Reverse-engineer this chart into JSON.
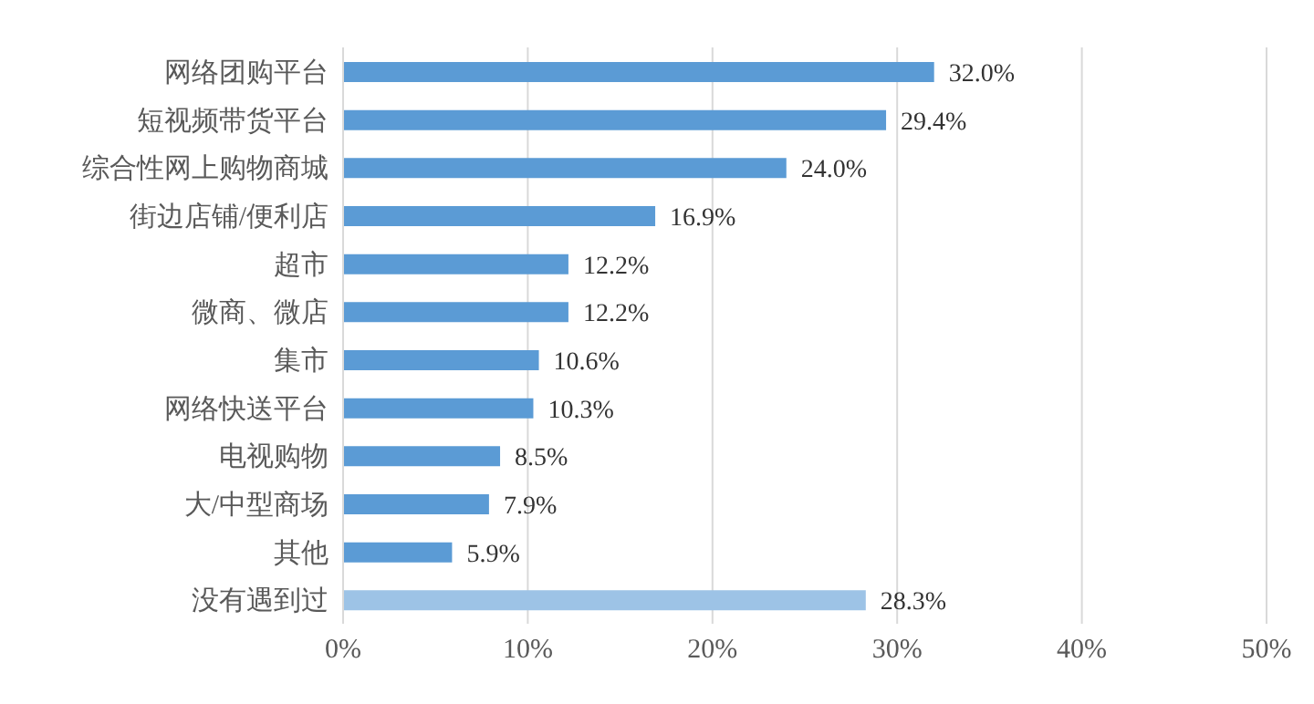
{
  "chart_data": {
    "type": "bar",
    "orientation": "horizontal",
    "categories": [
      "网络团购平台",
      "短视频带货平台",
      "综合性网上购物商城",
      "街边店铺/便利店",
      "超市",
      "微商、微店",
      "集市",
      "网络快送平台",
      "电视购物",
      "大/中型商场",
      "其他",
      "没有遇到过"
    ],
    "values": [
      32.0,
      29.4,
      24.0,
      16.9,
      12.2,
      12.2,
      10.6,
      10.3,
      8.5,
      7.9,
      5.9,
      28.3
    ],
    "value_labels": [
      "32.0%",
      "29.4%",
      "24.0%",
      "16.9%",
      "12.2%",
      "12.2%",
      "10.6%",
      "10.3%",
      "8.5%",
      "7.9%",
      "5.9%",
      "28.3%"
    ],
    "colors": [
      "#5b9bd5",
      "#5b9bd5",
      "#5b9bd5",
      "#5b9bd5",
      "#5b9bd5",
      "#5b9bd5",
      "#5b9bd5",
      "#5b9bd5",
      "#5b9bd5",
      "#5b9bd5",
      "#5b9bd5",
      "#9dc3e6"
    ],
    "xlim": [
      0,
      50
    ],
    "xticks": [
      {
        "value": 0,
        "label": "0%"
      },
      {
        "value": 10,
        "label": "10%"
      },
      {
        "value": 20,
        "label": "20%"
      },
      {
        "value": 30,
        "label": "30%"
      },
      {
        "value": 40,
        "label": "40%"
      },
      {
        "value": 50,
        "label": "50%"
      }
    ],
    "grid": "x"
  }
}
